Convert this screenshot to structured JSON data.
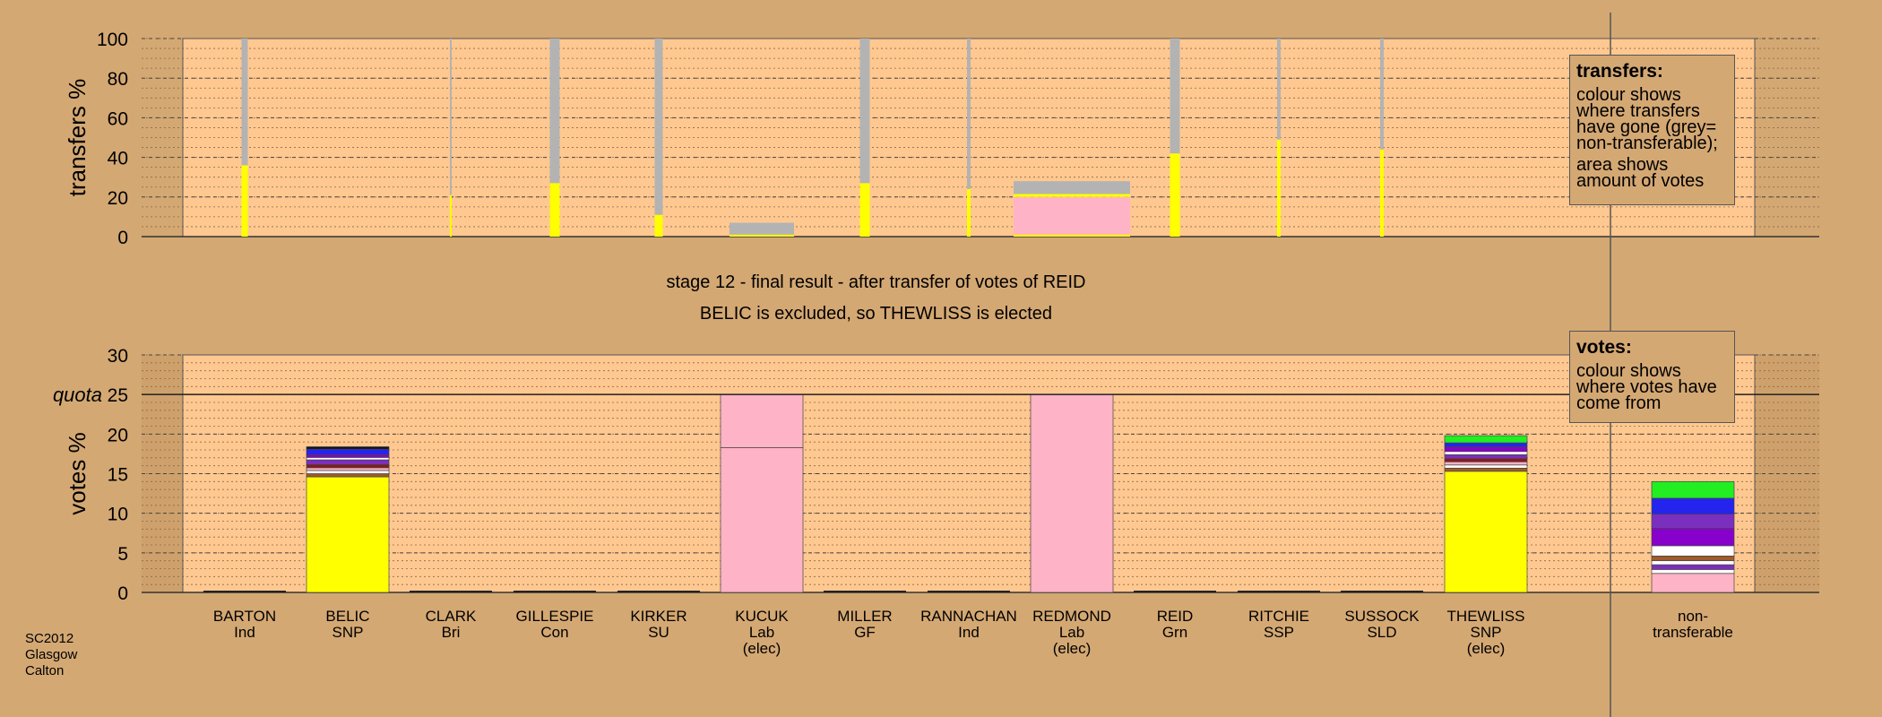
{
  "chart_data": [
    {
      "type": "bar",
      "name": "transfers",
      "ylabel": "transfers %",
      "ylim": [
        0,
        100
      ],
      "yticks": [
        0,
        20,
        40,
        60,
        80,
        100
      ],
      "bars": [
        {
          "candidate": "BARTON",
          "segments": [
            {
              "value": 36,
              "color": "#ffff00"
            },
            {
              "value": 64,
              "color": "#b3b3b3"
            }
          ]
        },
        {
          "candidate": "CLARK",
          "segments": [
            {
              "value": 21,
              "color": "#ffff00"
            },
            {
              "value": 79,
              "color": "#b3b3b3"
            }
          ]
        },
        {
          "candidate": "GILLESPIE",
          "segments": [
            {
              "value": 27,
              "color": "#ffff00"
            },
            {
              "value": 73,
              "color": "#b3b3b3"
            }
          ]
        },
        {
          "candidate": "KIRKER",
          "segments": [
            {
              "value": 11,
              "color": "#ffff00"
            },
            {
              "value": 89,
              "color": "#b3b3b3"
            }
          ]
        },
        {
          "candidate": "KUCUK",
          "segments": [
            {
              "value": 1,
              "color": "#ffff00"
            },
            {
              "value": 6,
              "color": "#b3b3b3"
            }
          ]
        },
        {
          "candidate": "MILLER",
          "segments": [
            {
              "value": 27,
              "color": "#ffff00"
            },
            {
              "value": 73,
              "color": "#b3b3b3"
            }
          ]
        },
        {
          "candidate": "RANNACHAN",
          "segments": [
            {
              "value": 24,
              "color": "#ffff00"
            },
            {
              "value": 76,
              "color": "#b3b3b3"
            }
          ]
        },
        {
          "candidate": "REDMOND",
          "segments": [
            {
              "value": 1,
              "color": "#ffff00"
            },
            {
              "value": 19,
              "color": "#ffb3c6"
            },
            {
              "value": 1.5,
              "color": "#ffff00"
            },
            {
              "value": 6.5,
              "color": "#b3b3b3"
            }
          ]
        },
        {
          "candidate": "REID",
          "segments": [
            {
              "value": 42,
              "color": "#ffff00"
            },
            {
              "value": 58,
              "color": "#b3b3b3"
            }
          ]
        },
        {
          "candidate": "RITCHIE",
          "segments": [
            {
              "value": 49,
              "color": "#ffff00"
            },
            {
              "value": 51,
              "color": "#b3b3b3"
            }
          ]
        },
        {
          "candidate": "SUSSOCK",
          "segments": [
            {
              "value": 44,
              "color": "#ffff00"
            },
            {
              "value": 56,
              "color": "#b3b3b3"
            }
          ]
        }
      ]
    },
    {
      "type": "bar",
      "name": "votes",
      "ylabel": "votes %",
      "ylim": [
        0,
        30
      ],
      "yticks": [
        0,
        5,
        10,
        15,
        20,
        25,
        30
      ],
      "quota": 25,
      "bars": [
        {
          "candidate": "BELIC",
          "segments": [
            {
              "value": 14.6,
              "color": "#ffff00"
            },
            {
              "value": 0.4,
              "color": "#a05a2c"
            },
            {
              "value": 0.4,
              "color": "#ffffff"
            },
            {
              "value": 0.35,
              "color": "#ffb3c6"
            },
            {
              "value": 0.4,
              "color": "#8b1a1a"
            },
            {
              "value": 0.6,
              "color": "#7b2fbe"
            },
            {
              "value": 0.3,
              "color": "#ffffff"
            },
            {
              "value": 0.35,
              "color": "#8800cc"
            },
            {
              "value": 0.7,
              "color": "#2424ee"
            },
            {
              "value": 0.3,
              "color": "#111111"
            }
          ]
        },
        {
          "candidate": "KUCUK",
          "segments": [
            {
              "value": 18.3,
              "color": "#ffb3c6"
            },
            {
              "value": 6.7,
              "color": "#ffb3c6"
            }
          ]
        },
        {
          "candidate": "REDMOND",
          "segments": [
            {
              "value": 25,
              "color": "#ffb3c6"
            }
          ]
        },
        {
          "candidate": "THEWLISS",
          "segments": [
            {
              "value": 15.3,
              "color": "#ffff00"
            },
            {
              "value": 0.4,
              "color": "#a05a2c"
            },
            {
              "value": 0.4,
              "color": "#ffffff"
            },
            {
              "value": 0.4,
              "color": "#ffb3c6"
            },
            {
              "value": 0.4,
              "color": "#8b1a1a"
            },
            {
              "value": 0.5,
              "color": "#7b2fbe"
            },
            {
              "value": 0.4,
              "color": "#ffffff"
            },
            {
              "value": 0.6,
              "color": "#8800cc"
            },
            {
              "value": 0.5,
              "color": "#2424ee"
            },
            {
              "value": 0.9,
              "color": "#22ee22"
            }
          ]
        },
        {
          "candidate": "non-transferable",
          "segments": [
            {
              "value": 2.4,
              "color": "#ffb3c6"
            },
            {
              "value": 0.5,
              "color": "#ffffff"
            },
            {
              "value": 0.6,
              "color": "#7b2fbe"
            },
            {
              "value": 0.5,
              "color": "#ffffff"
            },
            {
              "value": 0.6,
              "color": "#a05a2c"
            },
            {
              "value": 1.3,
              "color": "#ffffff"
            },
            {
              "value": 2.2,
              "color": "#8800cc"
            },
            {
              "value": 1.8,
              "color": "#7b2fbe"
            },
            {
              "value": 2.0,
              "color": "#2424ee"
            },
            {
              "value": 2.1,
              "color": "#22ee22"
            }
          ]
        }
      ]
    }
  ],
  "captions": {
    "line1": "stage 12 - final result - after transfer of votes of REID",
    "line2": "BELIC is excluded, so THEWLISS is elected",
    "quota_label": "quota"
  },
  "transfers_legend": {
    "title": "transfers:",
    "para1": "colour shows where transfers have gone (grey= non-transferable);",
    "para2": "area shows amount of votes"
  },
  "votes_legend": {
    "title": "votes:",
    "para1": "colour shows where votes have come from"
  },
  "candidates": [
    {
      "name": "BARTON",
      "party": "Ind",
      "status": ""
    },
    {
      "name": "BELIC",
      "party": "SNP",
      "status": ""
    },
    {
      "name": "CLARK",
      "party": "Bri",
      "status": ""
    },
    {
      "name": "GILLESPIE",
      "party": "Con",
      "status": ""
    },
    {
      "name": "KIRKER",
      "party": "SU",
      "status": ""
    },
    {
      "name": "KUCUK",
      "party": "Lab",
      "status": "(elec)"
    },
    {
      "name": "MILLER",
      "party": "GF",
      "status": ""
    },
    {
      "name": "RANNACHAN",
      "party": "Ind",
      "status": ""
    },
    {
      "name": "REDMOND",
      "party": "Lab",
      "status": "(elec)"
    },
    {
      "name": "REID",
      "party": "Grn",
      "status": ""
    },
    {
      "name": "RITCHIE",
      "party": "SSP",
      "status": ""
    },
    {
      "name": "SUSSOCK",
      "party": "SLD",
      "status": ""
    },
    {
      "name": "THEWLISS",
      "party": "SNP",
      "status": "(elec)"
    },
    {
      "name": "non-",
      "party": "transferable",
      "status": ""
    }
  ],
  "footer": {
    "line1": "SC2012",
    "line2": "Glasgow",
    "line3": "Calton"
  }
}
